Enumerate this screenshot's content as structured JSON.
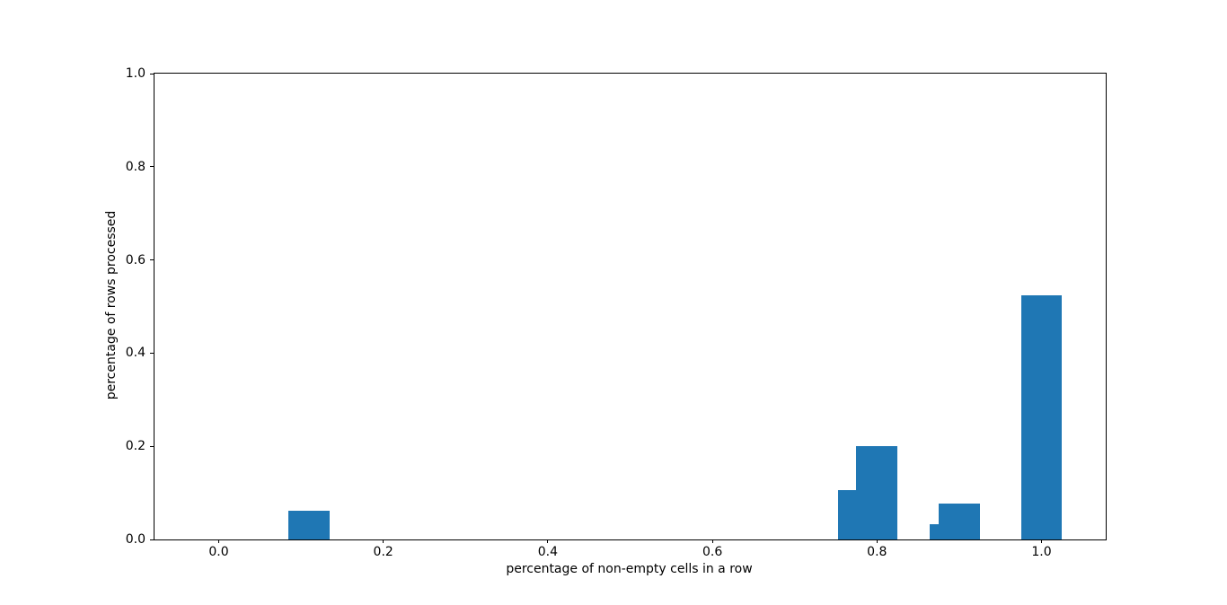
{
  "figure": {
    "background_color": "#ffffff"
  },
  "chart_data": {
    "type": "bar",
    "title": "",
    "xlabel": "percentage of non-empty cells in a row",
    "ylabel": "percentage of rows processed",
    "x": [
      0.11,
      0.778,
      0.8,
      0.889,
      0.9,
      1.0
    ],
    "values": [
      0.062,
      0.107,
      0.201,
      0.033,
      0.077,
      0.524
    ],
    "bar_width": 0.05,
    "bar_color": "#1f77b4",
    "xlim": [
      -0.078,
      1.078
    ],
    "ylim": [
      0.0,
      1.0
    ],
    "x_ticks": [
      0.0,
      0.2,
      0.4,
      0.6,
      0.8,
      1.0
    ],
    "x_tick_labels": [
      "0.0",
      "0.2",
      "0.4",
      "0.6",
      "0.8",
      "1.0"
    ],
    "y_ticks": [
      0.0,
      0.2,
      0.4,
      0.6,
      0.8,
      1.0
    ],
    "y_tick_labels": [
      "0.0",
      "0.2",
      "0.4",
      "0.6",
      "0.8",
      "1.0"
    ],
    "grid": false,
    "legend": null
  }
}
